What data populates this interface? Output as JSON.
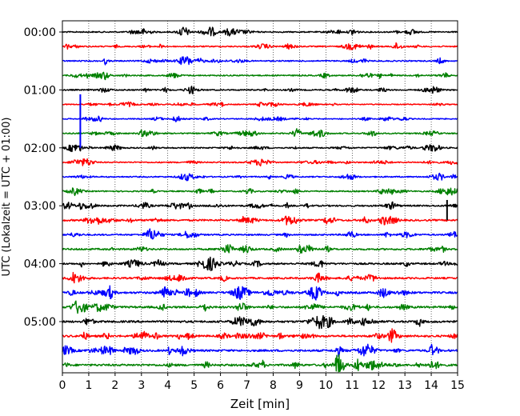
{
  "chart_data": {
    "type": "line",
    "title": "",
    "xlabel": "Zeit  [min]",
    "ylabel": "UTC (Lokalzeit = UTC + 01:00)",
    "xlim": [
      0,
      15
    ],
    "x_ticks": [
      "0",
      "1",
      "2",
      "3",
      "4",
      "5",
      "6",
      "7",
      "8",
      "9",
      "10",
      "11",
      "12",
      "13",
      "14",
      "15"
    ],
    "y_ticks": [
      {
        "label": "00:00",
        "row": 0
      },
      {
        "label": "01:00",
        "row": 4
      },
      {
        "label": "02:00",
        "row": 8
      },
      {
        "label": "03:00",
        "row": 12
      },
      {
        "label": "04:00",
        "row": 16
      },
      {
        "label": "05:00",
        "row": 20
      }
    ],
    "grid": "vertical-dotted",
    "row_minutes": 15,
    "rows": [
      {
        "start": "00:00",
        "color": "#000000",
        "amplitude": 0.25
      },
      {
        "start": "00:15",
        "color": "#ff0000",
        "amplitude": 0.25
      },
      {
        "start": "00:30",
        "color": "#0000ff",
        "amplitude": 0.25
      },
      {
        "start": "00:45",
        "color": "#008000",
        "amplitude": 0.25
      },
      {
        "start": "01:00",
        "color": "#000000",
        "amplitude": 0.25
      },
      {
        "start": "01:15",
        "color": "#ff0000",
        "amplitude": 0.2
      },
      {
        "start": "01:30",
        "color": "#0000ff",
        "amplitude": 0.2
      },
      {
        "start": "01:45",
        "color": "#008000",
        "amplitude": 0.25
      },
      {
        "start": "02:00",
        "color": "#000000",
        "amplitude": 0.25
      },
      {
        "start": "02:15",
        "color": "#ff0000",
        "amplitude": 0.25
      },
      {
        "start": "02:30",
        "color": "#0000ff",
        "amplitude": 0.25
      },
      {
        "start": "02:45",
        "color": "#008000",
        "amplitude": 0.25
      },
      {
        "start": "03:00",
        "color": "#000000",
        "amplitude": 0.3
      },
      {
        "start": "03:15",
        "color": "#ff0000",
        "amplitude": 0.35
      },
      {
        "start": "03:30",
        "color": "#0000ff",
        "amplitude": 0.3
      },
      {
        "start": "03:45",
        "color": "#008000",
        "amplitude": 0.35
      },
      {
        "start": "04:00",
        "color": "#000000",
        "amplitude": 0.35
      },
      {
        "start": "04:15",
        "color": "#ff0000",
        "amplitude": 0.35
      },
      {
        "start": "04:30",
        "color": "#0000ff",
        "amplitude": 0.4
      },
      {
        "start": "04:45",
        "color": "#008000",
        "amplitude": 0.4
      },
      {
        "start": "05:00",
        "color": "#000000",
        "amplitude": 0.4
      },
      {
        "start": "05:15",
        "color": "#ff0000",
        "amplitude": 0.4
      },
      {
        "start": "05:30",
        "color": "#0000ff",
        "amplitude": 0.4
      },
      {
        "start": "05:45",
        "color": "#008000",
        "amplitude": 0.4
      }
    ],
    "spikes": [
      {
        "row": 5,
        "minute": 0.68,
        "color": "#0000ff",
        "span_rows": [
          4.3,
          8.0
        ]
      },
      {
        "row": 12,
        "minute": 14.6,
        "color": "#000000",
        "span_rows": [
          11.6,
          13.0
        ]
      },
      {
        "row": 16,
        "minute": 1.55,
        "color": "#000000",
        "span_rows": [
          15.85,
          16.2
        ]
      }
    ]
  }
}
